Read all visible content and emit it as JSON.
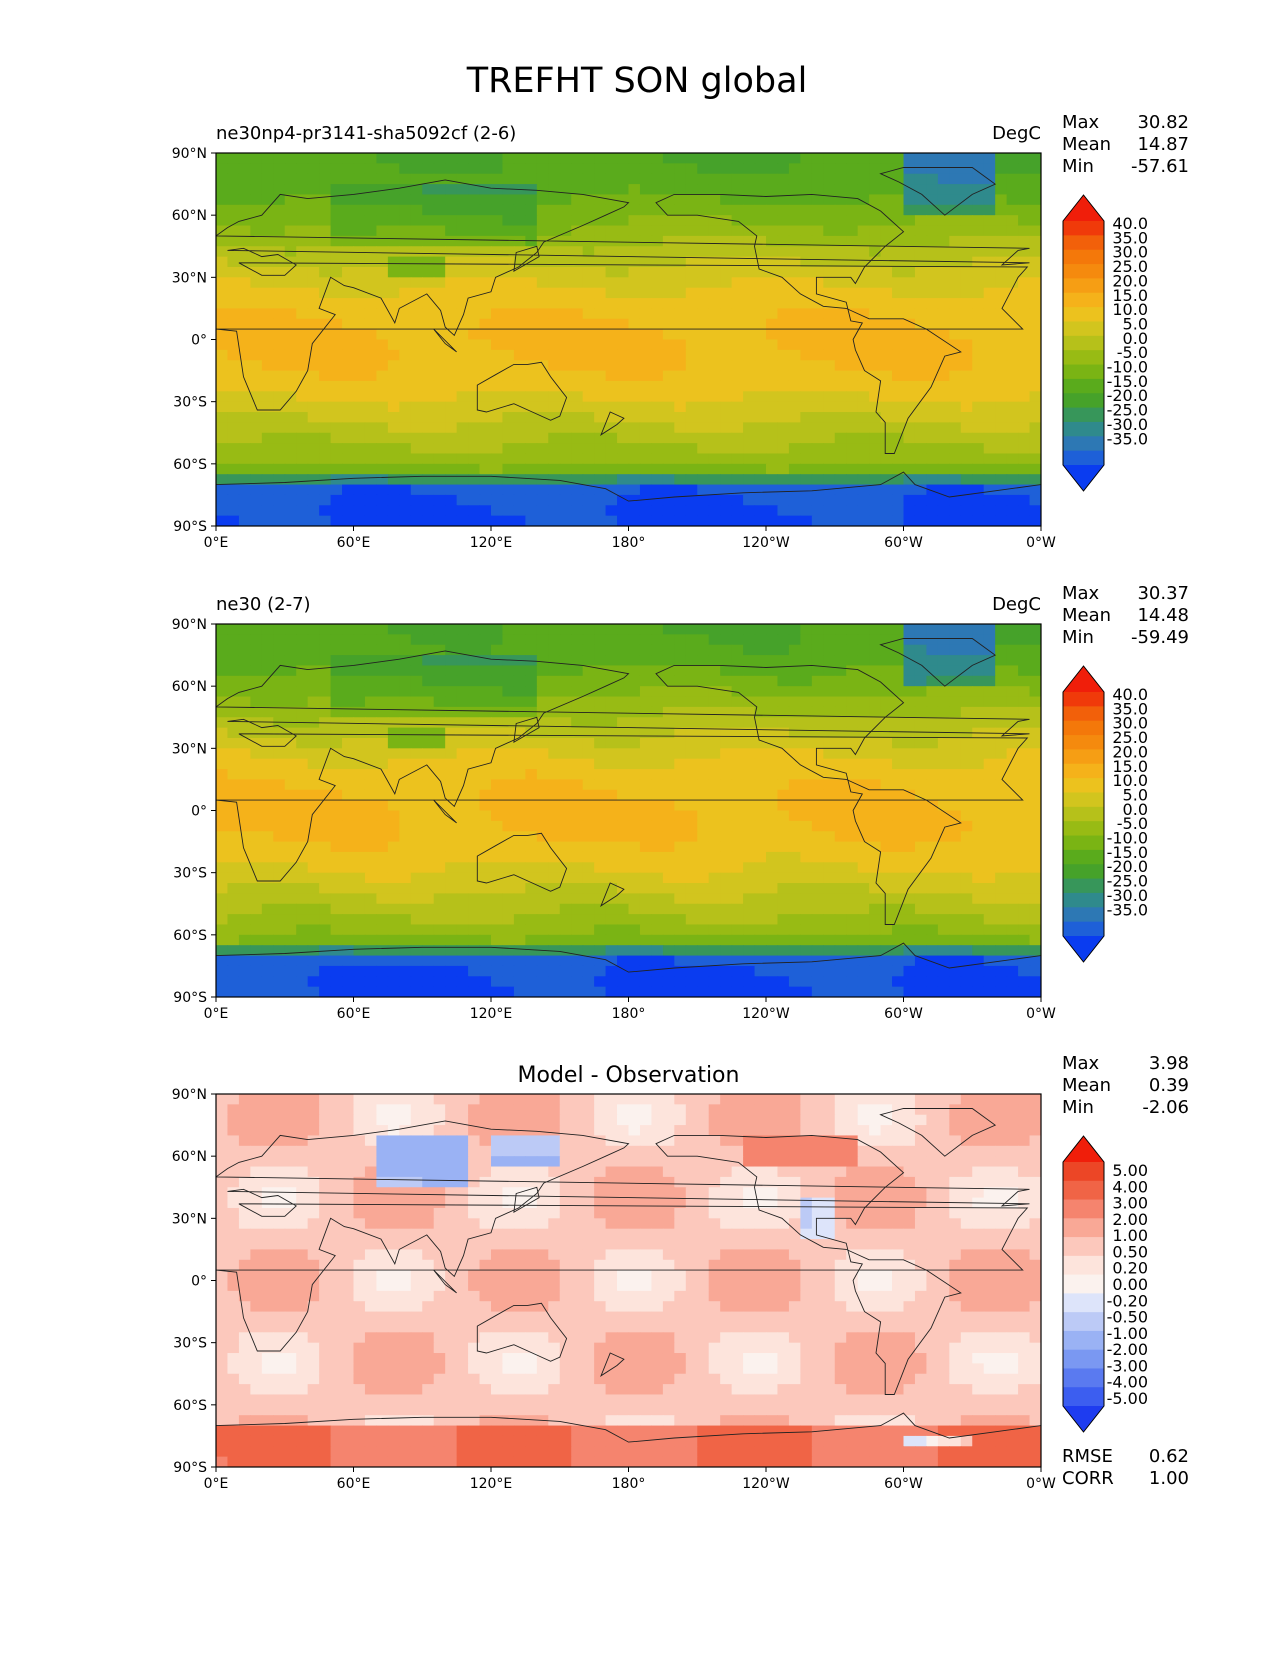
{
  "figure": {
    "title": "TREFHT SON global"
  },
  "colors": {
    "temp_palette": [
      "#0a3cf0",
      "#1e60d8",
      "#2d78b4",
      "#2f8a8c",
      "#37965a",
      "#46a22a",
      "#5aab1c",
      "#7ab414",
      "#98bb14",
      "#b6c11a",
      "#d2c51e",
      "#ecc21e",
      "#f5b21a",
      "#f69e14",
      "#f58a0e",
      "#f4780a",
      "#f2600a",
      "#f03a0a",
      "#f01e0a"
    ],
    "diff_palette": [
      "#1e3cf0",
      "#3c5ef0",
      "#5a7af0",
      "#7a98f2",
      "#9ab2f4",
      "#bccaf6",
      "#dde4fa",
      "#fbf2ee",
      "#fde4dc",
      "#fcc8bc",
      "#f9a896",
      "#f5846e",
      "#f06446",
      "#ec4626",
      "#f01e0a"
    ],
    "land_line": "#222222"
  },
  "panels": [
    {
      "id": "test",
      "left_title": "ne30np4-pr3141-sha5092cf (2-6)",
      "center_title": "",
      "units": "DegC",
      "stats": [
        {
          "label": "Max",
          "value": "30.82"
        },
        {
          "label": "Mean",
          "value": "14.87"
        },
        {
          "label": "Min",
          "value": "-57.61"
        }
      ],
      "colorbar_levels": [
        "40.0",
        "35.0",
        "30.0",
        "25.0",
        "20.0",
        "15.0",
        "10.0",
        "5.0",
        "0.0",
        "-5.0",
        "-10.0",
        "-15.0",
        "-20.0",
        "-25.0",
        "-30.0",
        "-35.0"
      ],
      "field": "temp_a",
      "bottom_stats": []
    },
    {
      "id": "ref",
      "left_title": "ne30 (2-7)",
      "center_title": "",
      "units": "DegC",
      "stats": [
        {
          "label": "Max",
          "value": "30.37"
        },
        {
          "label": "Mean",
          "value": "14.48"
        },
        {
          "label": "Min",
          "value": "-59.49"
        }
      ],
      "colorbar_levels": [
        "40.0",
        "35.0",
        "30.0",
        "25.0",
        "20.0",
        "15.0",
        "10.0",
        "5.0",
        "0.0",
        "-5.0",
        "-10.0",
        "-15.0",
        "-20.0",
        "-25.0",
        "-30.0",
        "-35.0"
      ],
      "field": "temp_b",
      "bottom_stats": []
    },
    {
      "id": "diff",
      "left_title": "",
      "center_title": "Model - Observation",
      "units": "",
      "stats": [
        {
          "label": "Max",
          "value": "3.98"
        },
        {
          "label": "Mean",
          "value": "0.39"
        },
        {
          "label": "Min",
          "value": "-2.06"
        }
      ],
      "colorbar_levels": [
        "5.00",
        "4.00",
        "3.00",
        "2.00",
        "1.00",
        "0.50",
        "0.20",
        "0.00",
        "-0.20",
        "-0.50",
        "-1.00",
        "-2.00",
        "-3.00",
        "-4.00",
        "-5.00"
      ],
      "field": "diff",
      "bottom_stats": [
        {
          "label": "RMSE",
          "value": "0.62"
        },
        {
          "label": "CORR",
          "value": "1.00"
        }
      ]
    }
  ],
  "chart_data": {
    "type": "heatmap",
    "title": "TREFHT SON global",
    "x_ticks": [
      "0°E",
      "60°E",
      "120°E",
      "180°",
      "120°W",
      "60°W",
      "0°W"
    ],
    "y_ticks": [
      "90°N",
      "60°N",
      "30°N",
      "0°",
      "30°S",
      "60°S",
      "90°S"
    ],
    "xlim": [
      0,
      360
    ],
    "ylim": [
      -90,
      90
    ],
    "lon_ticks": [
      0,
      60,
      120,
      180,
      240,
      300,
      360
    ],
    "lat_ticks": [
      90,
      60,
      30,
      0,
      -30,
      -60,
      -90
    ],
    "units": "DegC",
    "series": [
      {
        "panel": "ne30np4-pr3141-sha5092cf (2-6)",
        "max": 30.82,
        "mean": 14.87,
        "min": -57.61
      },
      {
        "panel": "ne30 (2-7)",
        "max": 30.37,
        "mean": 14.48,
        "min": -59.49
      },
      {
        "panel": "Model - Observation",
        "max": 3.98,
        "mean": 0.39,
        "min": -2.06,
        "rmse": 0.62,
        "corr": 1.0
      }
    ]
  }
}
